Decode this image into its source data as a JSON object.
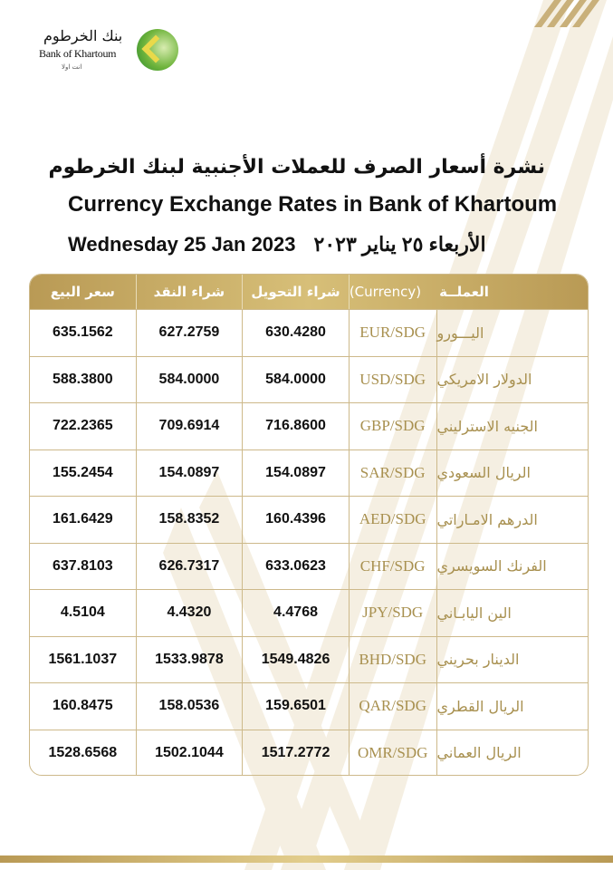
{
  "logo": {
    "arabic": "بنك الخرطوم",
    "english": "Bank of Khartoum",
    "tagline": "انت اولا"
  },
  "title_ar": "نشرة أسعار الصرف للعملات الأجنبية لبنك الخرطوم",
  "title_en": "Currency Exchange Rates in Bank of Khartoum",
  "date_en": "Wednesday 25 Jan 2023",
  "date_ar": "الأربعاء ٢٥ يناير ٢٠٢٣",
  "colors": {
    "gold": "#b99a55",
    "code_text": "#a8904f"
  },
  "table": {
    "headers": {
      "sell": "سعر البيع",
      "cash_buy": "شراء النقد",
      "transfer_buy": "شراء التحويل",
      "currency_ar": "العملــة",
      "currency_en": "(Currency)"
    },
    "rows": [
      {
        "name": "اليـــورو",
        "code": "EUR/SDG",
        "transfer": "630.4280",
        "cash": "627.2759",
        "sell": "635.1562"
      },
      {
        "name": "الدولار الامريكي",
        "code": "USD/SDG",
        "transfer": "584.0000",
        "cash": "584.0000",
        "sell": "588.3800"
      },
      {
        "name": "الجنيه الاسترليني",
        "code": "GBP/SDG",
        "transfer": "716.8600",
        "cash": "709.6914",
        "sell": "722.2365"
      },
      {
        "name": "الريال السعودي",
        "code": "SAR/SDG",
        "transfer": "154.0897",
        "cash": "154.0897",
        "sell": "155.2454"
      },
      {
        "name": "الدرهم الامـاراتي",
        "code": "AED/SDG",
        "transfer": "160.4396",
        "cash": "158.8352",
        "sell": "161.6429"
      },
      {
        "name": "الفرنك السويسري",
        "code": "CHF/SDG",
        "transfer": "633.0623",
        "cash": "626.7317",
        "sell": "637.8103"
      },
      {
        "name": "الين اليابـاني",
        "code": "JPY/SDG",
        "transfer": "4.4768",
        "cash": "4.4320",
        "sell": "4.5104"
      },
      {
        "name": "الدينار بحريني",
        "code": "BHD/SDG",
        "transfer": "1549.4826",
        "cash": "1533.9878",
        "sell": "1561.1037"
      },
      {
        "name": "الريال القطري",
        "code": "QAR/SDG",
        "transfer": "159.6501",
        "cash": "158.0536",
        "sell": "160.8475"
      },
      {
        "name": "الريال العماني",
        "code": "OMR/SDG",
        "transfer": "1517.2772",
        "cash": "1502.1044",
        "sell": "1528.6568"
      }
    ]
  }
}
